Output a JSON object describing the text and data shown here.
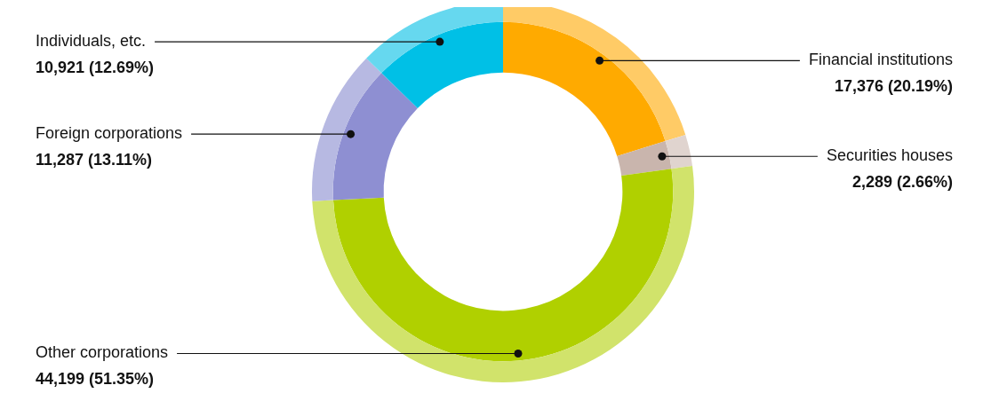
{
  "chart_data": {
    "type": "donut",
    "categories": [
      "Financial institutions",
      "Securities houses",
      "Other corporations",
      "Foreign corporations",
      "Individuals, etc."
    ],
    "series": [
      {
        "values": [
          20.19,
          2.66,
          51.35,
          13.11,
          12.69
        ],
        "colors": [
          "#ffaa00",
          "#c9b5ad",
          "#b0d000",
          "#8e8fd2",
          "#00c0e6"
        ]
      },
      {
        "values": [
          20.19,
          2.66,
          51.35,
          13.11,
          12.69
        ],
        "colors": [
          "#ffcb66",
          "#e0d4cf",
          "#d1e36b",
          "#b7b9e2",
          "#66d8ef"
        ]
      }
    ],
    "value_labels": [
      "17,376 (20.19%)",
      "2,289 (2.66%)",
      "44,199 (51.35%)",
      "11,287 (13.11%)",
      "10,921 (12.69%)"
    ],
    "legend": false
  }
}
